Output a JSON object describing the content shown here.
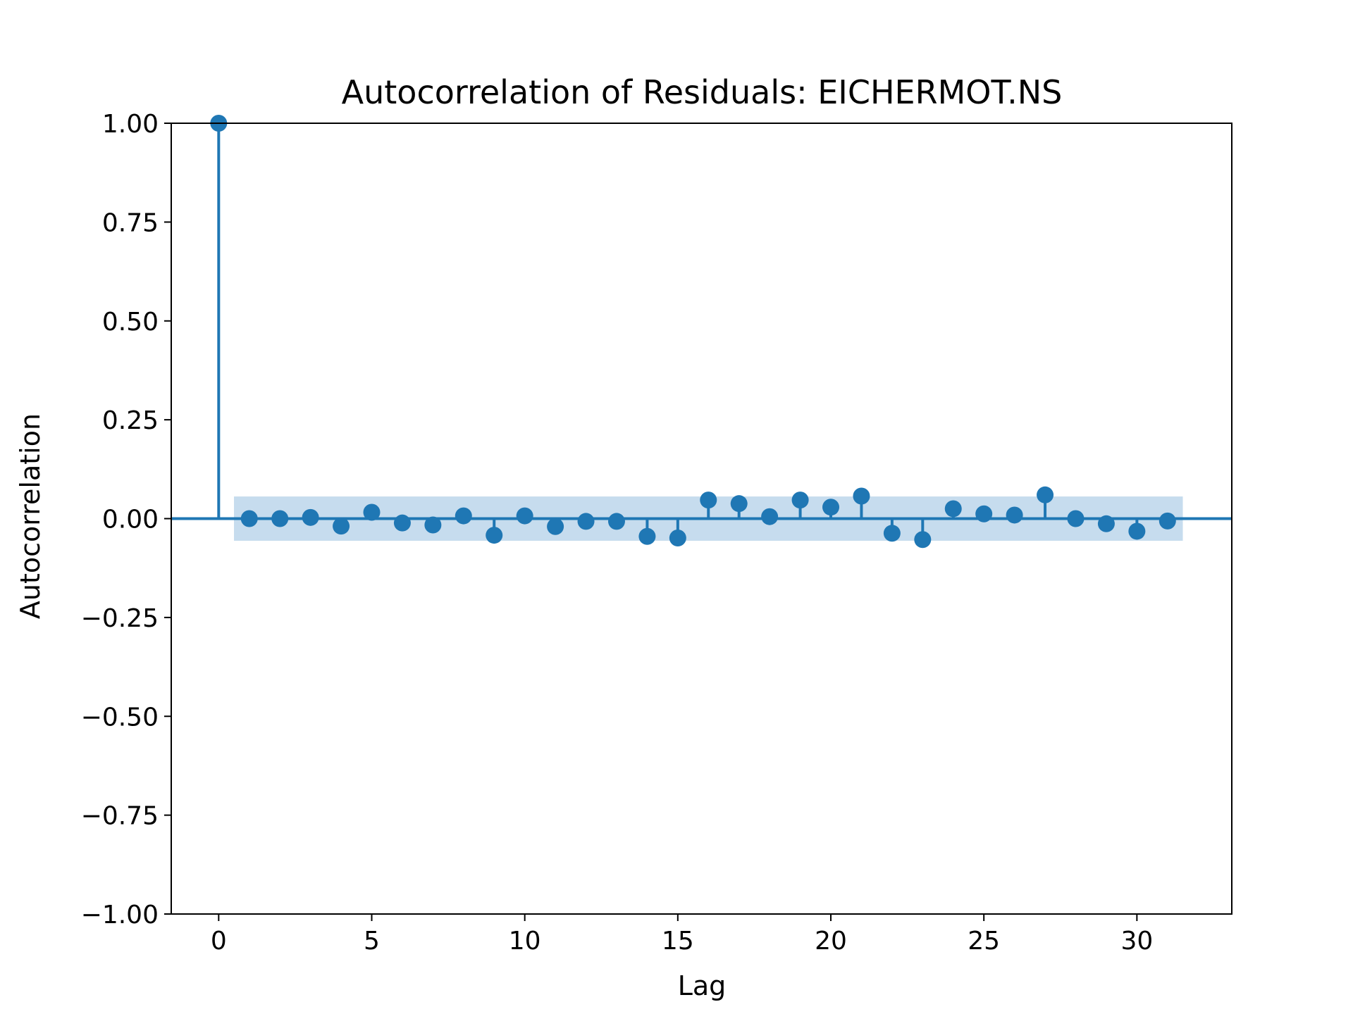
{
  "chart_data": {
    "type": "scatter",
    "subtype": "acf-stem",
    "title": "Autocorrelation of Residuals: EICHERMOT.NS",
    "xlabel": "Lag",
    "ylabel": "Autocorrelation",
    "xlim": [
      -1.55,
      33.1
    ],
    "ylim": [
      -1.0,
      1.0
    ],
    "xticks": [
      0,
      5,
      10,
      15,
      20,
      25,
      30
    ],
    "xtick_labels": [
      "0",
      "5",
      "10",
      "15",
      "20",
      "25",
      "30"
    ],
    "yticks": [
      1.0,
      0.75,
      0.5,
      0.25,
      0.0,
      -0.25,
      -0.5,
      -0.75,
      -1.0
    ],
    "ytick_labels": [
      "1.00",
      "0.75",
      "0.50",
      "0.25",
      "0.00",
      "−0.25",
      "−0.50",
      "−0.75",
      "−1.00"
    ],
    "grid": false,
    "lags": [
      0,
      1,
      2,
      3,
      4,
      5,
      6,
      7,
      8,
      9,
      10,
      11,
      12,
      13,
      14,
      15,
      16,
      17,
      18,
      19,
      20,
      21,
      22,
      23,
      24,
      25,
      26,
      27,
      28,
      29,
      30,
      31
    ],
    "values": [
      1.0,
      0.0,
      0.0,
      0.003,
      -0.019,
      0.016,
      -0.011,
      -0.016,
      0.007,
      -0.042,
      0.007,
      -0.02,
      -0.007,
      -0.007,
      -0.045,
      -0.049,
      0.047,
      0.038,
      0.005,
      0.047,
      0.029,
      0.057,
      -0.037,
      -0.053,
      0.025,
      0.012,
      0.009,
      0.06,
      0.0,
      -0.013,
      -0.032,
      -0.006
    ],
    "confidence_band": {
      "lag_start": 0.5,
      "lag_end": 31.5,
      "lower": -0.056,
      "upper": 0.056
    },
    "colors": {
      "series": "#1f77b4",
      "band": "#c6dcee"
    }
  }
}
